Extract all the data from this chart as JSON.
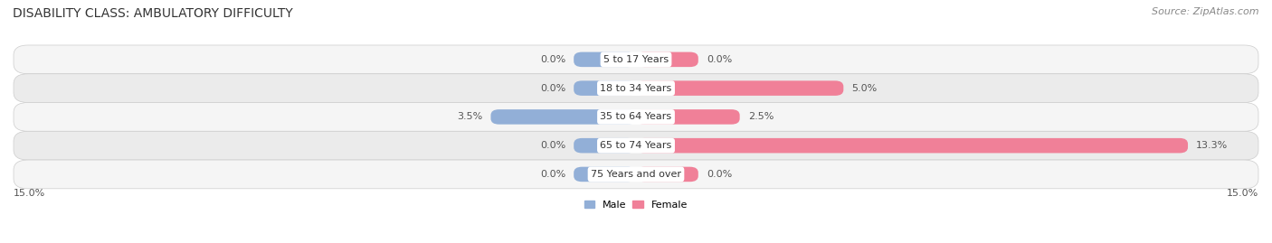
{
  "title": "DISABILITY CLASS: AMBULATORY DIFFICULTY",
  "source": "Source: ZipAtlas.com",
  "categories": [
    "5 to 17 Years",
    "18 to 34 Years",
    "35 to 64 Years",
    "65 to 74 Years",
    "75 Years and over"
  ],
  "male_values": [
    0.0,
    0.0,
    3.5,
    0.0,
    0.0
  ],
  "female_values": [
    0.0,
    5.0,
    2.5,
    13.3,
    0.0
  ],
  "male_color": "#92afd7",
  "female_color": "#f08098",
  "row_bg_even": "#f5f5f5",
  "row_bg_odd": "#ebebeb",
  "max_value": 15.0,
  "axis_label_left": "15.0%",
  "axis_label_right": "15.0%",
  "title_fontsize": 10,
  "source_fontsize": 8,
  "label_fontsize": 8,
  "cat_fontsize": 8,
  "bar_height": 0.52,
  "stub_size": 1.5,
  "fig_width": 14.06,
  "fig_height": 2.69,
  "legend_male": "Male",
  "legend_female": "Female"
}
